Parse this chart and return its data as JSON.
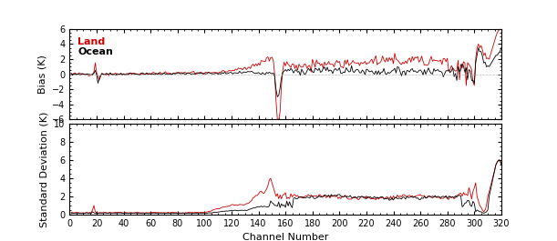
{
  "xlim": [
    0,
    320
  ],
  "bias_ylim": [
    -6,
    6
  ],
  "bias_yticks": [
    -6,
    -4,
    -2,
    0,
    2,
    4,
    6
  ],
  "std_ylim": [
    0,
    10
  ],
  "std_yticks": [
    0,
    2,
    4,
    6,
    8,
    10
  ],
  "xticks": [
    0,
    20,
    40,
    60,
    80,
    100,
    120,
    140,
    160,
    180,
    200,
    220,
    240,
    260,
    280,
    300,
    320
  ],
  "xlabel": "Channel Number",
  "bias_ylabel": "Bias (K)",
  "std_ylabel": "Standard Deviation (K)",
  "land_color": "#cc0000",
  "ocean_color": "#000000",
  "background_color": "#ffffff",
  "land_label": "Land",
  "ocean_label": "Ocean",
  "linewidth": 0.6,
  "legend_fontsize": 8,
  "tick_fontsize": 7,
  "label_fontsize": 8
}
